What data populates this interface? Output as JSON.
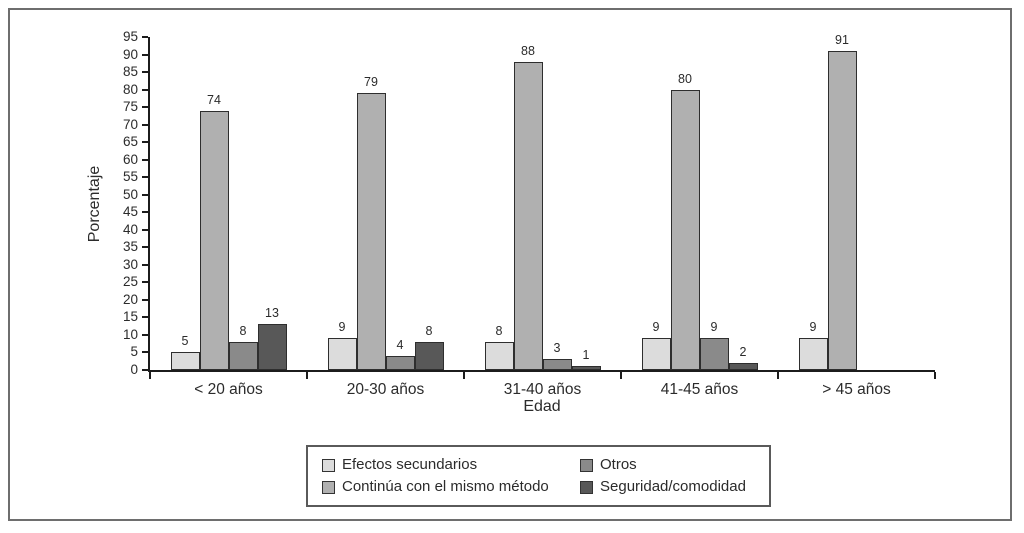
{
  "figure": {
    "background": "#ffffff",
    "frame_color": "#6e6e6e"
  },
  "chart_data": {
    "type": "bar",
    "title": "",
    "xlabel": "Edad",
    "ylabel": "Porcentaje",
    "ylim": [
      0,
      95
    ],
    "ytick_step": 5,
    "grid": false,
    "legend_position": "bottom",
    "categories": [
      "< 20 años",
      "20-30 años",
      "31-40 años",
      "41-45 años",
      "> 45 años"
    ],
    "series": [
      {
        "name": "Efectos secundarios",
        "color": "#dcdcdc",
        "values": [
          5,
          9,
          8,
          9,
          9
        ]
      },
      {
        "name": "Continúa con el mismo método",
        "color": "#b0b0b0",
        "values": [
          74,
          79,
          88,
          80,
          91
        ]
      },
      {
        "name": "Otros",
        "color": "#8a8a8a",
        "values": [
          8,
          4,
          3,
          9,
          0
        ]
      },
      {
        "name": "Seguridad/comodidad",
        "color": "#585858",
        "values": [
          13,
          8,
          1,
          2,
          0
        ]
      }
    ],
    "legend_items": [
      {
        "label": "Efectos secundarios",
        "color": "#dcdcdc"
      },
      {
        "label": "Otros",
        "color": "#8a8a8a"
      },
      {
        "label": "Continúa con el mismo método",
        "color": "#b0b0b0"
      },
      {
        "label": "Seguridad/comodidad",
        "color": "#585858"
      }
    ]
  }
}
